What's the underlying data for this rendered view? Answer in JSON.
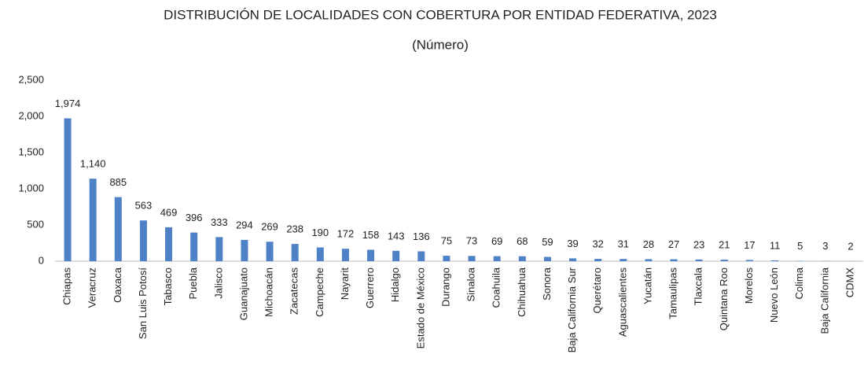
{
  "chart_data": {
    "type": "bar",
    "title": "DISTRIBUCIÓN DE LOCALIDADES CON COBERTURA POR ENTIDAD FEDERATIVA, 2023",
    "subtitle": "(Número)",
    "categories": [
      "Chiapas",
      "Veracruz",
      "Oaxaca",
      "San Luis Potosí",
      "Tabasco",
      "Puebla",
      "Jalisco",
      "Guanajuato",
      "Michoacán",
      "Zacatecas",
      "Campeche",
      "Nayarit",
      "Guerrero",
      "Hidalgo",
      "Estado de México",
      "Durango",
      "Sinaloa",
      "Coahuila",
      "Chihuahua",
      "Sonora",
      "Baja California Sur",
      "Querétaro",
      "Aguascalientes",
      "Yucatán",
      "Tamaulipas",
      "Tlaxcala",
      "Quintana Roo",
      "Morelos",
      "Nuevo León",
      "Colima",
      "Baja California",
      "CDMX"
    ],
    "values": [
      1974,
      1140,
      885,
      563,
      469,
      396,
      333,
      294,
      269,
      238,
      190,
      172,
      158,
      143,
      136,
      75,
      73,
      69,
      68,
      59,
      39,
      32,
      31,
      28,
      27,
      23,
      21,
      17,
      11,
      5,
      3,
      2
    ],
    "value_labels": [
      "1,974",
      "1,140",
      "885",
      "563",
      "469",
      "396",
      "333",
      "294",
      "269",
      "238",
      "190",
      "172",
      "158",
      "143",
      "136",
      "75",
      "73",
      "69",
      "68",
      "59",
      "39",
      "32",
      "31",
      "28",
      "27",
      "23",
      "21",
      "17",
      "11",
      "5",
      "3",
      "2"
    ],
    "color": "#4f81c7",
    "ylim": [
      0,
      2500
    ],
    "yticks": [
      0,
      500,
      {
        "value": 1000,
        "label": "1,000"
      },
      {
        "value": 1500,
        "label": "1,500"
      },
      {
        "value": 2000,
        "label": "2,000"
      },
      {
        "value": 2500,
        "label": "2,500"
      }
    ],
    "grid": false
  }
}
